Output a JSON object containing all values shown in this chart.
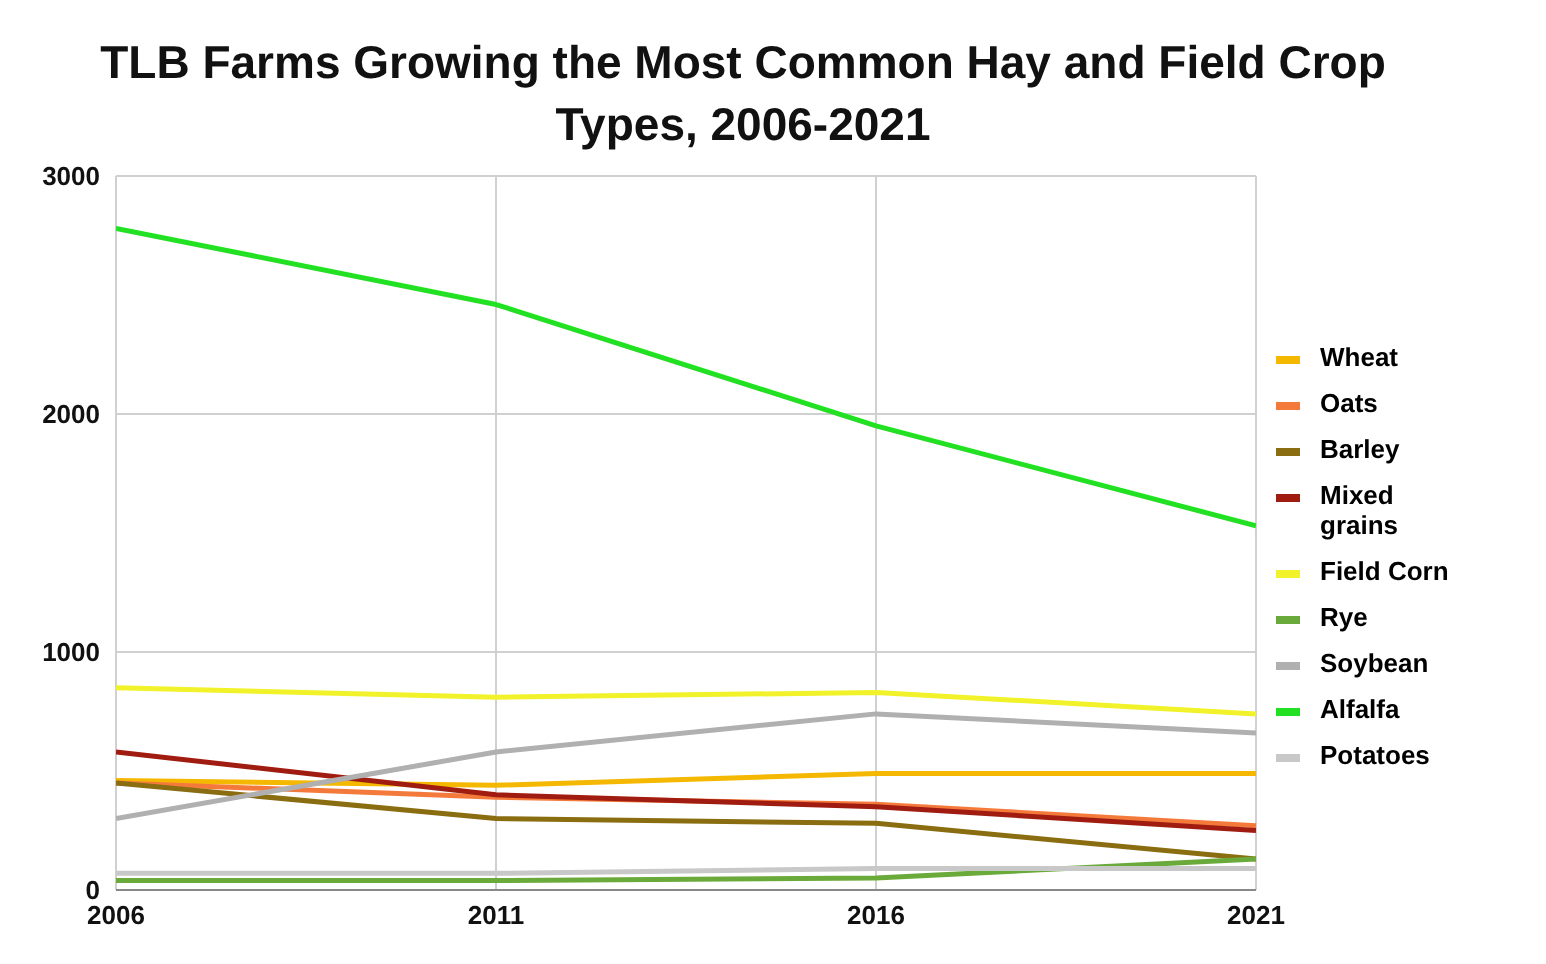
{
  "chart_data": {
    "type": "line",
    "title": "TLB Farms Growing the Most Common Hay and Field Crop Types, 2006-2021",
    "x": [
      2006,
      2011,
      2016,
      2021
    ],
    "xlim": [
      2006,
      2021
    ],
    "xticks": [
      2006,
      2011,
      2016,
      2021
    ],
    "ylim": [
      0,
      3000
    ],
    "yticks": [
      0,
      1000,
      2000,
      3000
    ],
    "grid": true,
    "legend": "right",
    "marker": "none",
    "line_style": "solid",
    "series": [
      {
        "name": "Wheat",
        "color": "#f5b800",
        "values": [
          460,
          440,
          490,
          490
        ]
      },
      {
        "name": "Oats",
        "color": "#f47a3c",
        "values": [
          450,
          390,
          360,
          270
        ]
      },
      {
        "name": "Barley",
        "color": "#8a6d10",
        "values": [
          450,
          300,
          280,
          130
        ]
      },
      {
        "name": "Mixed grains",
        "color": "#a01c10",
        "values": [
          580,
          400,
          350,
          250
        ]
      },
      {
        "name": "Field Corn",
        "color": "#f2f22a",
        "values": [
          850,
          810,
          830,
          740
        ]
      },
      {
        "name": "Rye",
        "color": "#6aaa3a",
        "values": [
          40,
          40,
          50,
          130
        ]
      },
      {
        "name": "Soybean",
        "color": "#b0b0b0",
        "values": [
          300,
          580,
          740,
          660
        ]
      },
      {
        "name": "Alfalfa",
        "color": "#22e022",
        "values": [
          2780,
          2460,
          1950,
          1530
        ]
      },
      {
        "name": "Potatoes",
        "color": "#c8c8c8",
        "values": [
          70,
          70,
          90,
          90
        ]
      }
    ]
  }
}
